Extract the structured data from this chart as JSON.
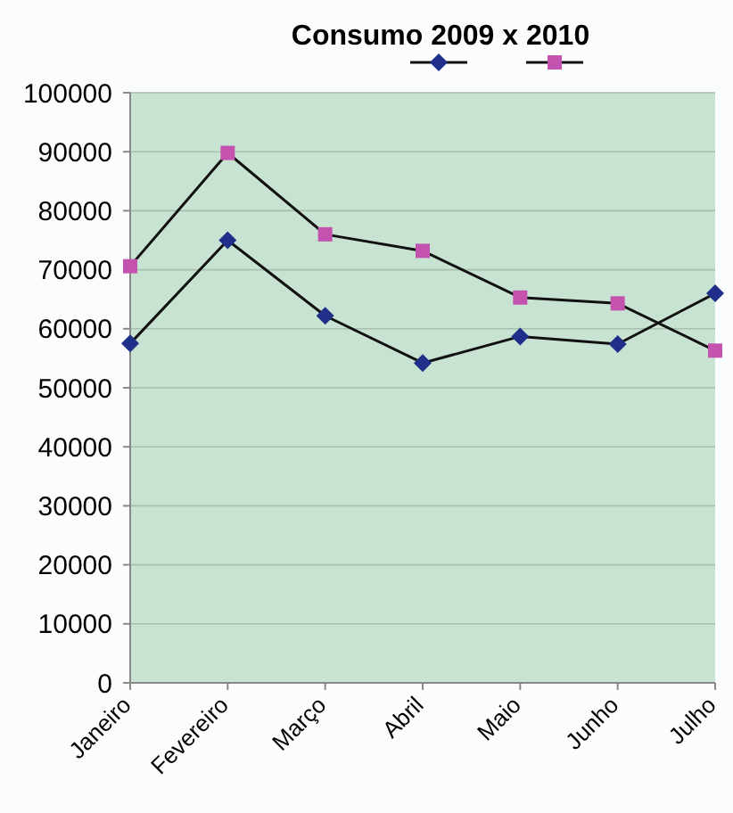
{
  "chart_data": {
    "type": "line",
    "title": "Consumo 2009 x 2010",
    "categories": [
      "Janeiro",
      "Fevereiro",
      "Março",
      "Abril",
      "Maio",
      "Junho",
      "Julho"
    ],
    "series": [
      {
        "color": "#1f2f8a",
        "marker": "diamond",
        "values": [
          57500,
          75000,
          62200,
          54200,
          58700,
          57400,
          66000
        ]
      },
      {
        "color": "#c453b0",
        "marker": "square",
        "values": [
          70600,
          89800,
          76000,
          73200,
          65300,
          64300,
          56300
        ]
      }
    ],
    "ylim": [
      0,
      100000
    ],
    "yticks": [
      0,
      10000,
      20000,
      30000,
      40000,
      50000,
      60000,
      70000,
      80000,
      90000,
      100000
    ],
    "grid": "y"
  }
}
